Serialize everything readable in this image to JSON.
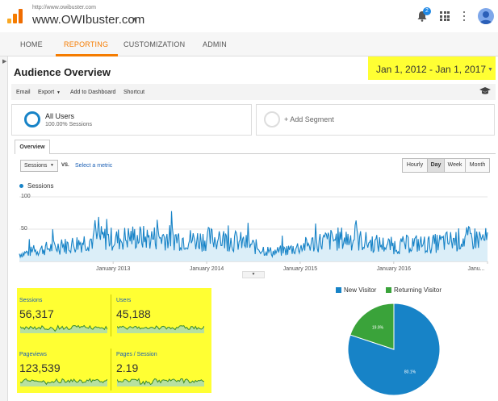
{
  "header": {
    "site_url": "http://www.owibuster.com",
    "site_name": "www.OWIbuster.com",
    "notifications_count": "2"
  },
  "nav": {
    "tabs": [
      {
        "label": "HOME"
      },
      {
        "label": "REPORTING"
      },
      {
        "label": "CUSTOMIZATION"
      },
      {
        "label": "ADMIN"
      }
    ],
    "active_tab": "REPORTING"
  },
  "page": {
    "title": "Audience Overview",
    "date_range": "Jan 1, 2012 - Jan 1, 2017"
  },
  "toolbar": {
    "email": "Email",
    "export": "Export",
    "add_to_dashboard": "Add to Dashboard",
    "shortcut": "Shortcut"
  },
  "segments": {
    "active": {
      "name": "All Users",
      "detail": "100.00% Sessions"
    },
    "add": "+ Add Segment"
  },
  "tabs": {
    "overview": "Overview"
  },
  "metric_controls": {
    "selected_metric": "Sessions",
    "vs": "VS.",
    "select_metric_link": "Select a metric",
    "granularity": [
      "Hourly",
      "Day",
      "Week",
      "Month"
    ],
    "active_granularity": "Day"
  },
  "chart_data": {
    "type": "line",
    "series": [
      {
        "name": "Sessions",
        "color": "#1783c7"
      }
    ],
    "y_ticks": [
      "100",
      "50"
    ],
    "ylim": [
      0,
      100
    ],
    "x_ticks": [
      "January 2013",
      "January 2014",
      "January 2015",
      "January 2016",
      "Janu..."
    ],
    "x_range": [
      "2012-01-01",
      "2017-01-01"
    ],
    "grid": true,
    "monthly_avg": [
      {
        "x": "2012-01",
        "y": 12
      },
      {
        "x": "2012-03",
        "y": 18
      },
      {
        "x": "2012-05",
        "y": 22
      },
      {
        "x": "2012-07",
        "y": 25
      },
      {
        "x": "2012-09",
        "y": 32
      },
      {
        "x": "2012-11",
        "y": 36
      },
      {
        "x": "2013-01",
        "y": 34
      },
      {
        "x": "2013-03",
        "y": 38
      },
      {
        "x": "2013-05",
        "y": 36
      },
      {
        "x": "2013-07",
        "y": 38
      },
      {
        "x": "2013-09",
        "y": 36
      },
      {
        "x": "2013-11",
        "y": 33
      },
      {
        "x": "2014-01",
        "y": 35
      },
      {
        "x": "2014-03",
        "y": 34
      },
      {
        "x": "2014-05",
        "y": 30
      },
      {
        "x": "2014-07",
        "y": 22
      },
      {
        "x": "2014-09",
        "y": 14
      },
      {
        "x": "2014-11",
        "y": 18
      },
      {
        "x": "2015-01",
        "y": 24
      },
      {
        "x": "2015-03",
        "y": 30
      },
      {
        "x": "2015-05",
        "y": 34
      },
      {
        "x": "2015-07",
        "y": 36
      },
      {
        "x": "2015-09",
        "y": 30
      },
      {
        "x": "2015-11",
        "y": 26
      },
      {
        "x": "2016-01",
        "y": 24
      },
      {
        "x": "2016-03",
        "y": 28
      },
      {
        "x": "2016-05",
        "y": 26
      },
      {
        "x": "2016-07",
        "y": 30
      },
      {
        "x": "2016-09",
        "y": 34
      },
      {
        "x": "2016-11",
        "y": 36
      },
      {
        "x": "2016-12",
        "y": 34
      }
    ]
  },
  "kpis": [
    {
      "label": "Sessions",
      "value": "56,317"
    },
    {
      "label": "Users",
      "value": "45,188"
    },
    {
      "label": "Pageviews",
      "value": "123,539"
    },
    {
      "label": "Pages / Session",
      "value": "2.19"
    }
  ],
  "pie": {
    "legend": [
      {
        "name": "New Visitor",
        "color": "#1783c7"
      },
      {
        "name": "Returning Visitor",
        "color": "#3aa33a"
      }
    ],
    "slices": [
      {
        "name": "New Visitor",
        "value": 80.1,
        "label": "80.1%",
        "color": "#1783c7"
      },
      {
        "name": "Returning Visitor",
        "value": 19.9,
        "label": "19.9%",
        "color": "#3aa33a"
      }
    ]
  },
  "colors": {
    "accent": "#f57c00",
    "highlight": "#ffff33",
    "link": "#1a5fb4"
  }
}
